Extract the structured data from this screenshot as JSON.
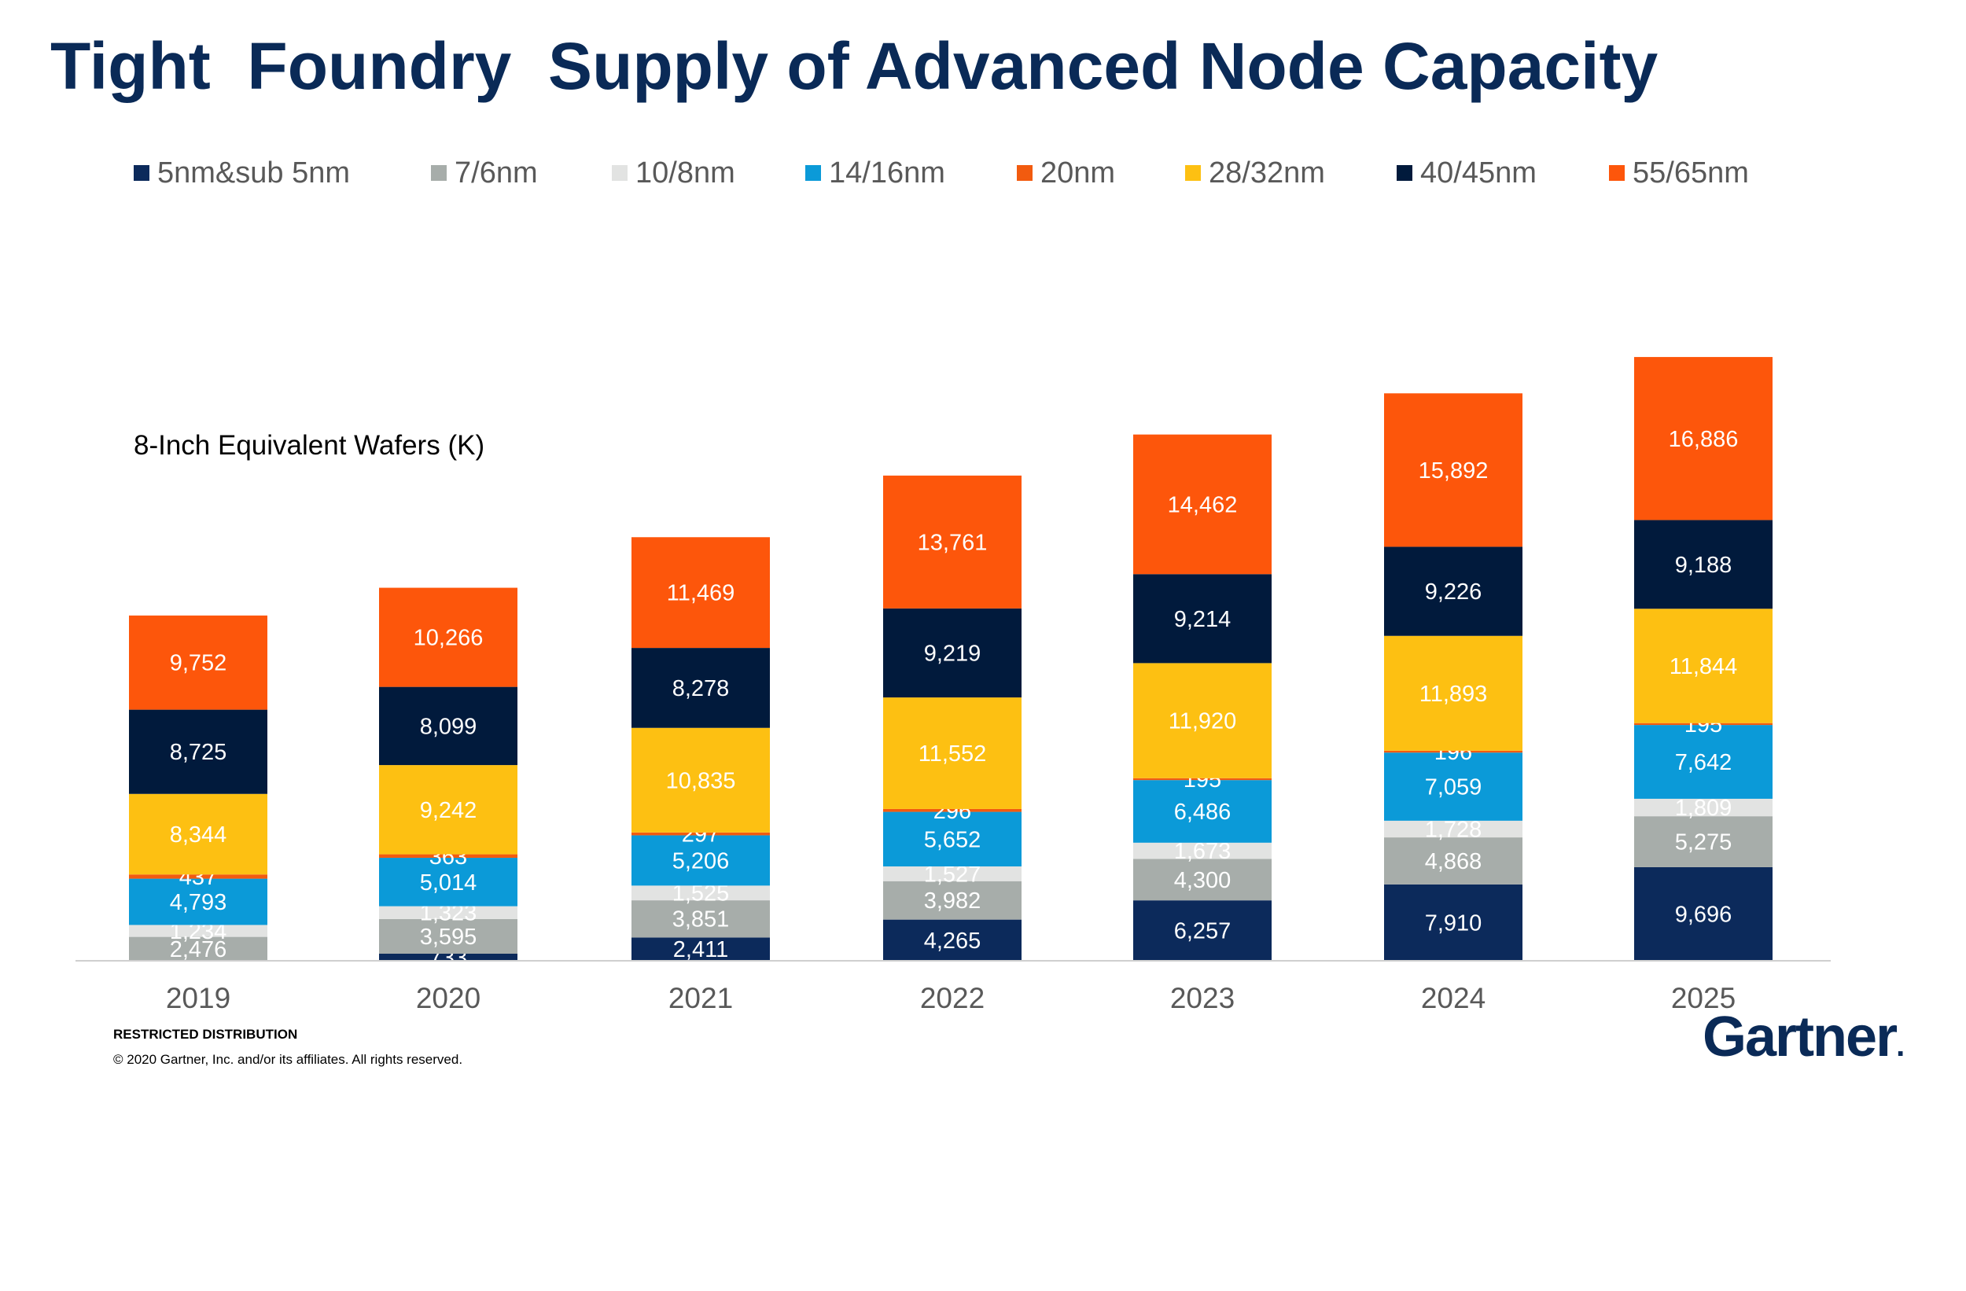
{
  "title": "Tight  Foundry  Supply of Advanced Node Capacity",
  "footer": {
    "restricted": "RESTRICTED DISTRIBUTION",
    "copyright": "© 2020 Gartner, Inc. and/or its affiliates. All rights reserved."
  },
  "logo": {
    "text": "Gartner",
    "dot": "."
  },
  "chart_data": {
    "type": "bar",
    "stacked": true,
    "ylabel": "8-Inch Equivalent Wafers (K)",
    "categories": [
      "2019",
      "2020",
      "2021",
      "2022",
      "2023",
      "2024",
      "2025"
    ],
    "legend_position": "top",
    "grid": false,
    "series": [
      {
        "name": "5nm&sub 5nm",
        "color": "#0c2a5b",
        "values": [
          0,
          733,
          2411,
          4265,
          6257,
          7910,
          9696
        ]
      },
      {
        "name": "7/6nm",
        "color": "#a7adaa",
        "values": [
          2476,
          3595,
          3851,
          3982,
          4300,
          4868,
          5275
        ]
      },
      {
        "name": "10/8nm",
        "color": "#e2e3e2",
        "values": [
          1234,
          1323,
          1525,
          1527,
          1673,
          1728,
          1809
        ]
      },
      {
        "name": "14/16nm",
        "color": "#0b9ad8",
        "values": [
          4793,
          5014,
          5206,
          5652,
          6486,
          7059,
          7642
        ]
      },
      {
        "name": "20nm",
        "color": "#f25b0f",
        "values": [
          437,
          363,
          297,
          296,
          195,
          196,
          195
        ]
      },
      {
        "name": "28/32nm",
        "color": "#fdc012",
        "values": [
          8344,
          9242,
          10835,
          11552,
          11920,
          11893,
          11844
        ]
      },
      {
        "name": "40/45nm",
        "color": "#011a3c",
        "values": [
          8725,
          8099,
          8278,
          9219,
          9214,
          9226,
          9188
        ]
      },
      {
        "name": "55/65nm",
        "color": "#fd560b",
        "values": [
          9752,
          10266,
          11469,
          13761,
          14462,
          15892,
          16886
        ]
      }
    ]
  }
}
